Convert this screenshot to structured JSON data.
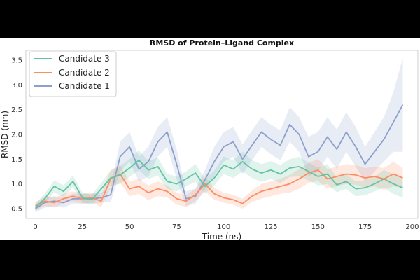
{
  "chart_data": {
    "type": "line",
    "title": "RMSD of Protein–Ligand Complex",
    "xlabel": "Time (ns)",
    "ylabel": "RMSD (nm)",
    "xlim": [
      -5,
      203
    ],
    "ylim": [
      0.3,
      3.7
    ],
    "xticks": [
      0,
      25,
      50,
      75,
      100,
      125,
      150,
      175,
      200
    ],
    "yticks": [
      0.5,
      1.0,
      1.5,
      2.0,
      2.5,
      3.0,
      3.5
    ],
    "xtick_labels": [
      "0",
      "25",
      "50",
      "75",
      "100",
      "125",
      "150",
      "175",
      "200"
    ],
    "ytick_labels": [
      "0.5",
      "1.0",
      "1.5",
      "2.0",
      "2.5",
      "3.0",
      "3.5"
    ],
    "grid": false,
    "legend_position": "top-left",
    "x": [
      0,
      5,
      10,
      15,
      20,
      25,
      30,
      35,
      40,
      45,
      50,
      55,
      60,
      65,
      70,
      75,
      80,
      85,
      90,
      95,
      100,
      105,
      110,
      115,
      120,
      125,
      130,
      135,
      140,
      145,
      150,
      155,
      160,
      165,
      170,
      175,
      180,
      185,
      190,
      195
    ],
    "series": [
      {
        "name": "Candidate 3",
        "color": "#66c2a5",
        "values": [
          0.52,
          0.7,
          0.95,
          0.85,
          1.05,
          0.72,
          0.68,
          0.9,
          1.12,
          1.18,
          1.32,
          1.48,
          1.28,
          1.35,
          1.05,
          1.0,
          1.1,
          1.22,
          0.95,
          1.12,
          1.38,
          1.3,
          1.45,
          1.3,
          1.22,
          1.28,
          1.2,
          1.32,
          1.35,
          1.25,
          1.15,
          1.2,
          0.98,
          1.05,
          0.9,
          0.92,
          1.0,
          1.1,
          1.0,
          0.92
        ],
        "band": [
          0.08,
          0.1,
          0.12,
          0.12,
          0.12,
          0.1,
          0.1,
          0.12,
          0.15,
          0.18,
          0.18,
          0.2,
          0.18,
          0.18,
          0.15,
          0.15,
          0.15,
          0.18,
          0.15,
          0.15,
          0.18,
          0.18,
          0.2,
          0.18,
          0.18,
          0.18,
          0.18,
          0.18,
          0.2,
          0.18,
          0.18,
          0.2,
          0.15,
          0.15,
          0.15,
          0.15,
          0.15,
          0.18,
          0.2,
          0.2
        ]
      },
      {
        "name": "Candidate 2",
        "color": "#fc8d62",
        "values": [
          0.55,
          0.65,
          0.62,
          0.7,
          0.75,
          0.7,
          0.72,
          0.65,
          1.1,
          1.2,
          0.9,
          0.95,
          0.82,
          0.9,
          0.85,
          0.7,
          0.65,
          0.78,
          1.0,
          0.8,
          0.72,
          0.68,
          0.6,
          0.75,
          0.85,
          0.9,
          0.95,
          1.0,
          1.1,
          1.22,
          1.28,
          1.1,
          1.15,
          1.2,
          1.18,
          1.12,
          1.15,
          1.1,
          1.2,
          1.12
        ],
        "band": [
          0.08,
          0.1,
          0.1,
          0.1,
          0.1,
          0.1,
          0.1,
          0.12,
          0.18,
          0.18,
          0.15,
          0.15,
          0.15,
          0.15,
          0.12,
          0.12,
          0.12,
          0.12,
          0.15,
          0.12,
          0.1,
          0.1,
          0.1,
          0.12,
          0.15,
          0.15,
          0.15,
          0.18,
          0.2,
          0.2,
          0.22,
          0.2,
          0.2,
          0.2,
          0.2,
          0.2,
          0.2,
          0.22,
          0.25,
          0.2
        ]
      },
      {
        "name": "Candidate 1",
        "color": "#8da0cb",
        "values": [
          0.5,
          0.62,
          0.65,
          0.62,
          0.7,
          0.7,
          0.7,
          0.72,
          0.78,
          1.55,
          1.75,
          1.3,
          1.45,
          1.85,
          2.05,
          1.4,
          0.7,
          0.75,
          1.08,
          1.45,
          1.75,
          1.85,
          1.5,
          1.78,
          2.05,
          1.9,
          1.78,
          2.2,
          2.0,
          1.55,
          1.65,
          1.95,
          1.7,
          2.05,
          1.75,
          1.4,
          1.65,
          1.9,
          2.25,
          2.6
        ],
        "band": [
          0.08,
          0.1,
          0.1,
          0.1,
          0.1,
          0.1,
          0.1,
          0.1,
          0.15,
          0.3,
          0.3,
          0.25,
          0.3,
          0.3,
          0.3,
          0.3,
          0.15,
          0.15,
          0.2,
          0.3,
          0.3,
          0.3,
          0.3,
          0.3,
          0.3,
          0.3,
          0.3,
          0.35,
          0.35,
          0.4,
          0.4,
          0.4,
          0.4,
          0.4,
          0.4,
          0.35,
          0.4,
          0.45,
          0.6,
          0.95
        ]
      }
    ]
  }
}
